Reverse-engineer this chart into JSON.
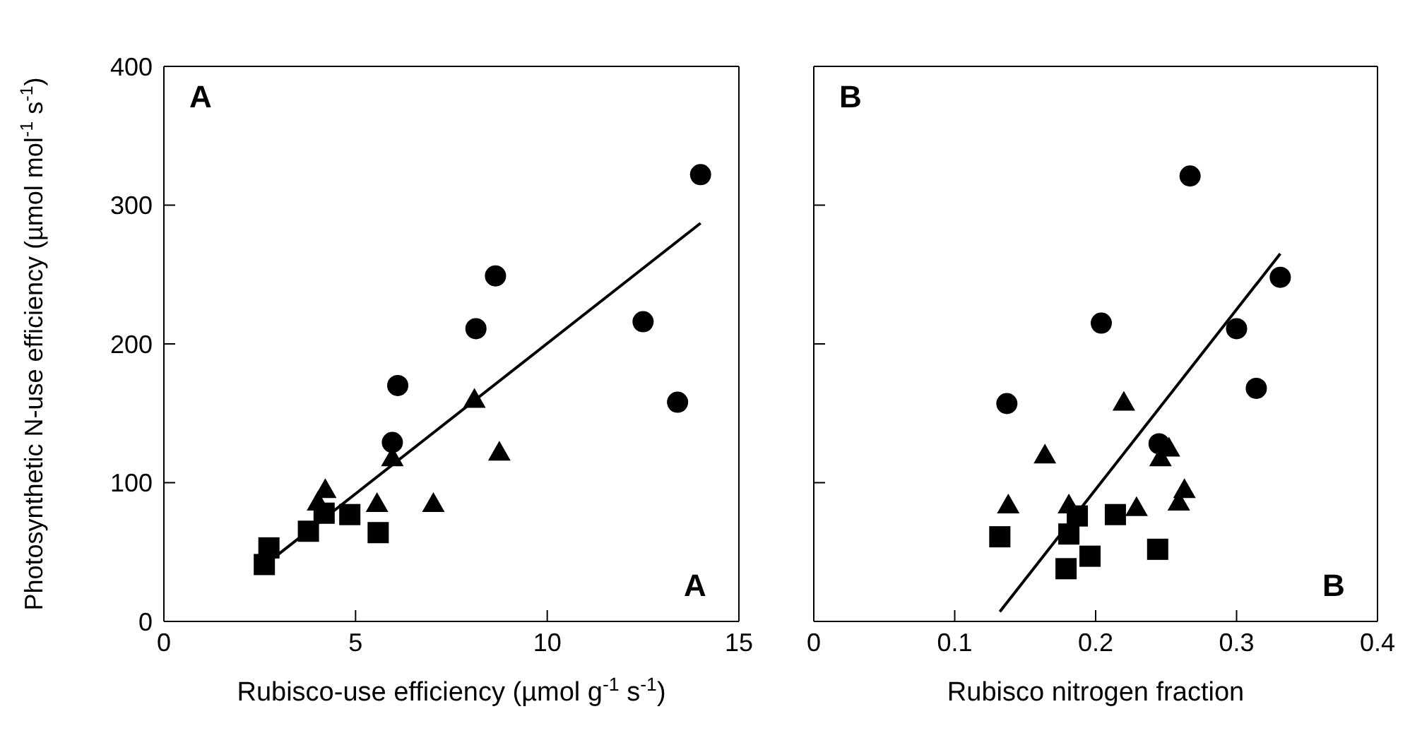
{
  "chart_data": [
    {
      "type": "scatter",
      "xlabel": "Rubisco-use efficiency (µmol g$^{-1}$ s$^{-1}$)",
      "ylabel": "Photosynthetic N-use efficiency (µmol mol$^{-1}$ s$^{-1}$)",
      "annotations": [
        "A",
        "A"
      ],
      "xlim": [
        0,
        15
      ],
      "xticks": [
        0,
        5,
        10,
        15
      ],
      "ylim": [
        0,
        400
      ],
      "yticks": [
        0,
        100,
        200,
        300,
        400
      ],
      "series": [
        {
          "type": "scatter",
          "marker": "circle",
          "color": "#000000",
          "x": [
            8.65,
            8.14,
            6.1,
            5.96,
            12.5,
            13.4,
            14.0
          ],
          "values": [
            249,
            211,
            170,
            129,
            216,
            158,
            322
          ]
        },
        {
          "type": "scatter",
          "marker": "triangle",
          "color": "#000000",
          "x": [
            8.1,
            8.75,
            7.03,
            5.56,
            5.96,
            4.21,
            4.02
          ],
          "values": [
            160,
            122,
            85,
            85,
            118,
            95,
            86
          ]
        },
        {
          "type": "scatter",
          "marker": "square",
          "color": "#000000",
          "x": [
            4.85,
            5.59,
            3.77,
            4.18,
            2.74,
            2.62
          ],
          "values": [
            77,
            64,
            65,
            78,
            53,
            41
          ]
        },
        {
          "type": "line",
          "color": "#000000",
          "x": [
            2.6,
            14
          ],
          "values": [
            40,
            287
          ]
        }
      ]
    },
    {
      "type": "scatter",
      "xlabel": "Rubisco nitrogen fraction",
      "annotations": [
        "B",
        "B"
      ],
      "xlim": [
        0,
        0.4
      ],
      "xticks": [
        0,
        0.1,
        0.2,
        0.3,
        0.4
      ],
      "ylim": [
        0,
        400
      ],
      "yticks": [
        0,
        100,
        200,
        300,
        400
      ],
      "tick_labels": "x",
      "series": [
        {
          "type": "scatter",
          "marker": "circle",
          "color": "#000000",
          "x": [
            0.267,
            0.331,
            0.3,
            0.314,
            0.204,
            0.137,
            0.245
          ],
          "values": [
            321,
            248,
            211,
            168,
            215,
            157,
            128
          ]
        },
        {
          "type": "scatter",
          "marker": "triangle",
          "color": "#000000",
          "x": [
            0.22,
            0.164,
            0.138,
            0.181,
            0.229,
            0.252,
            0.246,
            0.263,
            0.259
          ],
          "values": [
            158,
            120,
            84,
            84,
            82,
            125,
            118,
            95,
            86
          ]
        },
        {
          "type": "scatter",
          "marker": "square",
          "color": "#000000",
          "x": [
            0.132,
            0.181,
            0.187,
            0.214,
            0.196,
            0.179,
            0.244
          ],
          "values": [
            61,
            63,
            76,
            77,
            47,
            38,
            52
          ]
        },
        {
          "type": "line",
          "color": "#000000",
          "x": [
            0.132,
            0.331
          ],
          "values": [
            7,
            265
          ]
        }
      ]
    }
  ]
}
